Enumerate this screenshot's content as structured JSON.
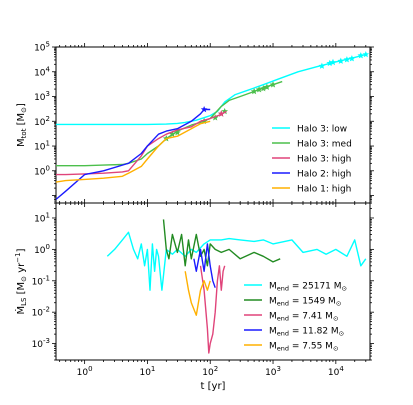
{
  "chart_data": [
    {
      "type": "line",
      "xscale": "log",
      "yscale": "log",
      "xlim": [
        0.35,
        35000
      ],
      "ylim": [
        0.05,
        100000
      ],
      "ylabel": "M_tot [M_⊙]",
      "legend_position": "lower right",
      "x_tick_values": [
        1,
        10,
        100,
        1000,
        10000
      ],
      "y_tick_values": [
        1,
        10,
        100,
        1000,
        10000,
        100000
      ],
      "y_tick_labels": [
        "10^0",
        "10^1",
        "10^2",
        "10^3",
        "10^4",
        "10^5"
      ],
      "series": [
        {
          "name": "Halo 3: low",
          "color": "#00ffff",
          "points": [
            [
              0.35,
              75
            ],
            [
              0.5,
              75
            ],
            [
              1,
              75
            ],
            [
              2,
              75
            ],
            [
              5,
              75
            ],
            [
              10,
              75
            ],
            [
              20,
              77
            ],
            [
              30,
              82
            ],
            [
              40,
              90
            ],
            [
              60,
              110
            ],
            [
              80,
              140
            ],
            [
              100,
              170
            ],
            [
              130,
              250
            ],
            [
              170,
              600
            ],
            [
              250,
              1200
            ],
            [
              400,
              1800
            ],
            [
              700,
              3000
            ],
            [
              1200,
              5000
            ],
            [
              2500,
              10000
            ],
            [
              5000,
              16000
            ],
            [
              10000,
              25000
            ],
            [
              20000,
              38000
            ],
            [
              30000,
              50000
            ]
          ],
          "stars": [
            [
              6000,
              17000
            ],
            [
              8000,
              22000
            ],
            [
              9000,
              24000
            ],
            [
              12000,
              27000
            ],
            [
              15000,
              31000
            ],
            [
              18000,
              34000
            ],
            [
              25000,
              45000
            ],
            [
              30000,
              50000
            ]
          ]
        },
        {
          "name": "Halo 3: med",
          "color": "#4cbf4c",
          "points": [
            [
              0.35,
              1.6
            ],
            [
              0.5,
              1.6
            ],
            [
              1,
              1.6
            ],
            [
              2,
              1.7
            ],
            [
              4,
              1.8
            ],
            [
              5,
              2
            ],
            [
              8,
              3
            ],
            [
              10,
              5
            ],
            [
              15,
              10
            ],
            [
              20,
              20
            ],
            [
              30,
              40
            ],
            [
              50,
              70
            ],
            [
              70,
              90
            ],
            [
              100,
              130
            ],
            [
              150,
              400
            ],
            [
              200,
              700
            ],
            [
              300,
              1000
            ],
            [
              500,
              1600
            ],
            [
              700,
              2300
            ],
            [
              1000,
              3000
            ],
            [
              1400,
              4000
            ]
          ],
          "stars": [
            [
              20,
              20
            ],
            [
              25,
              30
            ],
            [
              30,
              35
            ],
            [
              80,
              100
            ],
            [
              120,
              140
            ],
            [
              150,
              200
            ],
            [
              170,
              250
            ],
            [
              500,
              1600
            ],
            [
              600,
              1900
            ],
            [
              700,
              2100
            ],
            [
              800,
              2400
            ],
            [
              1000,
              3000
            ]
          ]
        },
        {
          "name": "Halo 3: high",
          "color": "#e0447a",
          "points": [
            [
              0.35,
              0.7
            ],
            [
              0.5,
              0.7
            ],
            [
              1,
              0.75
            ],
            [
              2,
              0.8
            ],
            [
              4,
              0.9
            ],
            [
              5,
              1
            ],
            [
              8,
              4
            ],
            [
              10,
              10
            ],
            [
              15,
              20
            ],
            [
              20,
              30
            ],
            [
              30,
              45
            ],
            [
              50,
              60
            ],
            [
              70,
              100
            ],
            [
              100,
              130
            ],
            [
              150,
              190
            ],
            [
              180,
              250
            ]
          ],
          "stars": [
            [
              150,
              200
            ]
          ]
        },
        {
          "name": "Halo 2: high",
          "color": "#1a1aff",
          "points": [
            [
              0.35,
              0.07
            ],
            [
              0.5,
              0.15
            ],
            [
              1,
              0.7
            ],
            [
              2,
              1
            ],
            [
              5,
              2
            ],
            [
              8,
              5
            ],
            [
              10,
              10
            ],
            [
              15,
              30
            ],
            [
              20,
              40
            ],
            [
              30,
              50
            ],
            [
              50,
              100
            ],
            [
              70,
              200
            ],
            [
              80,
              300
            ],
            [
              100,
              300
            ]
          ],
          "stars": [
            [
              80,
              300
            ]
          ]
        },
        {
          "name": "Halo 1: high",
          "color": "#ffb000",
          "points": [
            [
              0.35,
              0.35
            ],
            [
              0.5,
              0.4
            ],
            [
              1,
              0.45
            ],
            [
              2,
              0.5
            ],
            [
              4,
              0.6
            ],
            [
              5,
              0.8
            ],
            [
              8,
              1.5
            ],
            [
              10,
              3
            ],
            [
              15,
              10
            ],
            [
              20,
              20
            ],
            [
              30,
              25
            ],
            [
              50,
              50
            ],
            [
              70,
              80
            ],
            [
              100,
              100
            ]
          ],
          "stars": []
        }
      ]
    },
    {
      "type": "line",
      "xscale": "log",
      "yscale": "log",
      "xlim": [
        0.35,
        35000
      ],
      "ylim": [
        0.0003,
        30
      ],
      "xlabel": "t [yr]",
      "ylabel": "Ṁ_LS [M_⊙ yr^-1]",
      "legend_position": "lower right",
      "x_tick_values": [
        1,
        10,
        100,
        1000,
        10000
      ],
      "x_tick_labels": [
        "10^0",
        "10^1",
        "10^2",
        "10^3",
        "10^4"
      ],
      "y_tick_values": [
        0.001,
        0.01,
        0.1,
        1,
        10
      ],
      "y_tick_labels": [
        "10^-3",
        "10^-2",
        "10^-1",
        "10^0",
        "10^1"
      ],
      "series": [
        {
          "name": "M_end = 25171 M_⊙",
          "legend_text": "= 25171 M",
          "color": "#00ffff",
          "points": [
            [
              2.3,
              0.6
            ],
            [
              3,
              1
            ],
            [
              4,
              2
            ],
            [
              5,
              3.5
            ],
            [
              6,
              1
            ],
            [
              7,
              0.5
            ],
            [
              8,
              1.5
            ],
            [
              9,
              0.3
            ],
            [
              10,
              1
            ],
            [
              11,
              0.05
            ],
            [
              12,
              1.5
            ],
            [
              13,
              0.2
            ],
            [
              14,
              1
            ],
            [
              15,
              0.6
            ],
            [
              17,
              0.05
            ],
            [
              20,
              1
            ],
            [
              25,
              0.7
            ],
            [
              30,
              1
            ],
            [
              40,
              0.6
            ],
            [
              50,
              1
            ],
            [
              60,
              0.8
            ],
            [
              80,
              1.5
            ],
            [
              100,
              2
            ],
            [
              150,
              2
            ],
            [
              200,
              2.2
            ],
            [
              300,
              2
            ],
            [
              500,
              1.8
            ],
            [
              700,
              2
            ],
            [
              1000,
              1.5
            ],
            [
              2000,
              2
            ],
            [
              3000,
              0.8
            ],
            [
              5000,
              1
            ],
            [
              7000,
              0.7
            ],
            [
              10000,
              1
            ],
            [
              15000,
              0.6
            ],
            [
              20000,
              2
            ],
            [
              25000,
              0.3
            ],
            [
              30000,
              0.5
            ]
          ]
        },
        {
          "name": "M_end = 1549 M_⊙",
          "legend_text": "= 1549 M",
          "color": "#228b22",
          "points": [
            [
              18,
              9
            ],
            [
              20,
              1
            ],
            [
              22,
              0.5
            ],
            [
              25,
              3
            ],
            [
              30,
              0.8
            ],
            [
              35,
              3
            ],
            [
              40,
              0.3
            ],
            [
              45,
              2
            ],
            [
              50,
              0.5
            ],
            [
              60,
              3
            ],
            [
              70,
              0.6
            ],
            [
              80,
              1
            ],
            [
              90,
              0.3
            ],
            [
              100,
              1.5
            ],
            [
              120,
              1
            ],
            [
              150,
              0.8
            ],
            [
              200,
              1
            ],
            [
              300,
              0.5
            ],
            [
              500,
              0.8
            ],
            [
              700,
              0.6
            ],
            [
              1000,
              0.4
            ],
            [
              1300,
              0.5
            ]
          ]
        },
        {
          "name": "M_end = 7.41 M_⊙",
          "legend_text": "= 7.41 M",
          "color": "#e0447a",
          "points": [
            [
              70,
              0.3
            ],
            [
              80,
              0.05
            ],
            [
              90,
              0.003
            ],
            [
              95,
              0.0005
            ],
            [
              100,
              0.001
            ],
            [
              110,
              0.002
            ],
            [
              120,
              0.01
            ],
            [
              130,
              0.1
            ],
            [
              140,
              0.3
            ],
            [
              150,
              0.05
            ],
            [
              160,
              0.2
            ],
            [
              170,
              0.3
            ]
          ]
        },
        {
          "name": "M_end = 11.82 M_⊙",
          "legend_text": "= 11.82 M",
          "color": "#1a1aff",
          "points": [
            [
              55,
              0.5
            ],
            [
              60,
              0.2
            ],
            [
              70,
              1
            ],
            [
              80,
              0.2
            ],
            [
              90,
              1.5
            ],
            [
              100,
              0.3
            ],
            [
              110,
              0.1
            ],
            [
              120,
              0.06
            ]
          ]
        },
        {
          "name": "M_end = 7.55 M_⊙",
          "legend_text": "= 7.55 M",
          "color": "#ffb000",
          "points": [
            [
              40,
              0.2
            ],
            [
              45,
              0.05
            ],
            [
              50,
              0.02
            ],
            [
              60,
              0.008
            ],
            [
              70,
              0.05
            ],
            [
              80,
              0.1
            ],
            [
              90,
              0.05
            ],
            [
              100,
              0.1
            ]
          ]
        }
      ]
    }
  ]
}
